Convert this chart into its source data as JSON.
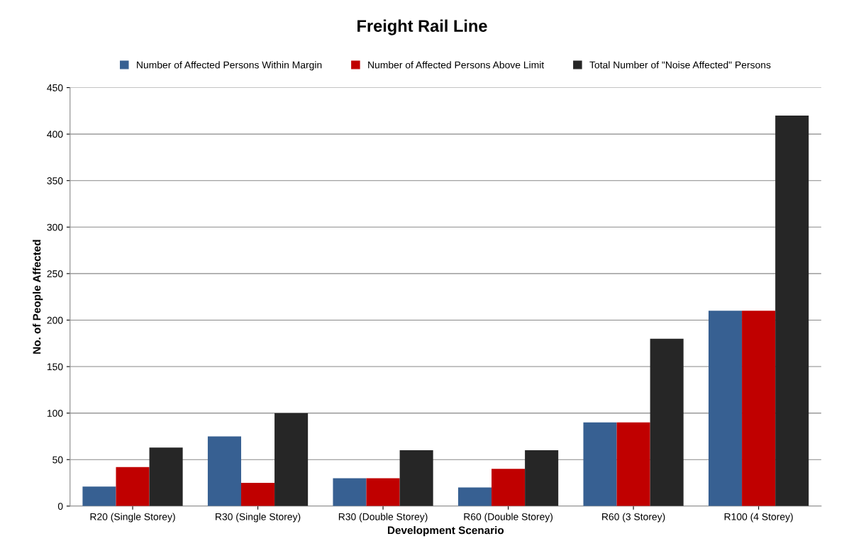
{
  "chart_data": {
    "type": "bar",
    "title": "Freight Rail Line",
    "xlabel": "Development Scenario",
    "ylabel": "No. of People Affected",
    "categories": [
      "R20 (Single Storey)",
      "R30 (Single Storey)",
      "R30 (Double Storey)",
      "R60 (Double Storey)",
      "R60 (3 Storey)",
      "R100 (4 Storey)"
    ],
    "series": [
      {
        "name": "Number of Affected Persons Within Margin",
        "color": "#376092",
        "values": [
          21,
          75,
          30,
          20,
          90,
          210
        ]
      },
      {
        "name": "Number of Affected Persons Above Limit",
        "color": "#c00000",
        "values": [
          42,
          25,
          30,
          40,
          90,
          210
        ]
      },
      {
        "name": "Total Number of \"Noise Affected\" Persons",
        "color": "#262626",
        "values": [
          63,
          100,
          60,
          60,
          180,
          420
        ]
      }
    ],
    "ylim": [
      0,
      450
    ],
    "yticks": [
      0,
      50,
      100,
      150,
      200,
      250,
      300,
      350,
      400,
      450
    ],
    "grid": "y",
    "legend": "top"
  }
}
